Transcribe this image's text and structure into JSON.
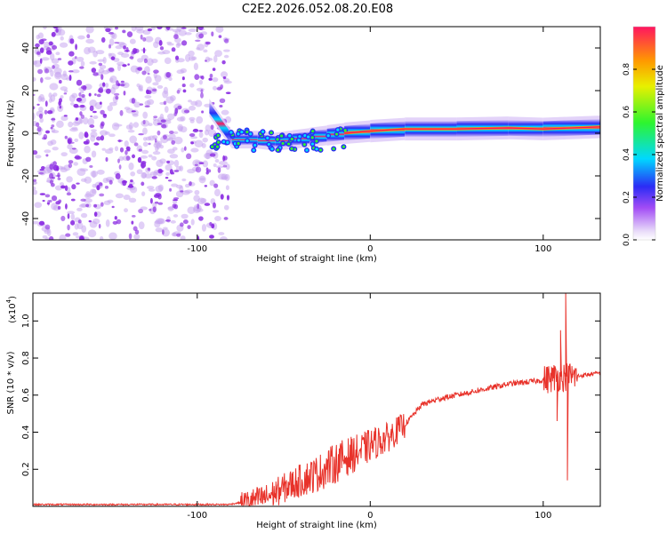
{
  "title": "C2E2.2026.052.08.20.E08",
  "colors": {
    "snr_line": "#e8322a",
    "noise_dot": "#8a2be2",
    "noise_halo": "#c9a8f0",
    "axis": "#000000"
  },
  "chart_data": [
    {
      "type": "heatmap",
      "name": "spectrogram",
      "xlabel": "Height of straight line (km)",
      "ylabel": "Frequency (Hz)",
      "xlim": [
        -195,
        133
      ],
      "ylim": [
        -50,
        50
      ],
      "xticks": [
        -100,
        0,
        100
      ],
      "yticks": [
        -40,
        -20,
        0,
        20,
        40
      ],
      "xtick_labels": [
        "-100",
        "0",
        "100"
      ],
      "ytick_labels": [
        "-40",
        "-20",
        "0",
        "20",
        "40"
      ],
      "noise_region_x": [
        -195,
        -82
      ],
      "ridge": [
        {
          "x": -93,
          "f": 12,
          "amp": 0.3
        },
        {
          "x": -80,
          "f": -3,
          "amp": 0.2
        },
        {
          "x": -65,
          "f": -3,
          "amp": 0.25
        },
        {
          "x": -55,
          "f": -4,
          "amp": 0.3
        },
        {
          "x": -45,
          "f": -3,
          "amp": 0.35
        },
        {
          "x": -35,
          "f": -2,
          "amp": 0.45
        },
        {
          "x": -25,
          "f": -1,
          "amp": 0.55
        },
        {
          "x": -15,
          "f": 0,
          "amp": 0.7
        },
        {
          "x": 0,
          "f": 1,
          "amp": 0.85
        },
        {
          "x": 20,
          "f": 2,
          "amp": 0.95
        },
        {
          "x": 50,
          "f": 2,
          "amp": 1.0
        },
        {
          "x": 80,
          "f": 2.5,
          "amp": 0.95
        },
        {
          "x": 100,
          "f": 2,
          "amp": 0.9
        },
        {
          "x": 133,
          "f": 3,
          "amp": 0.95
        }
      ],
      "colorbar": {
        "label": "Normalized spectral amplitude",
        "ticks": [
          0.0,
          0.2,
          0.4,
          0.6,
          0.8
        ],
        "tick_labels": [
          "0.0",
          "0.2",
          "0.4",
          "0.6",
          "0.8"
        ],
        "range": [
          0,
          1
        ]
      }
    },
    {
      "type": "line",
      "name": "snr",
      "xlabel": "Height of straight line (km)",
      "ylabel": "SNR (10 * v/v)",
      "yscale_label": "(x10",
      "yscale_exp": "4",
      "yscale_close": ")",
      "xlim": [
        -195,
        133
      ],
      "ylim": [
        0,
        1.15
      ],
      "xticks": [
        -100,
        0,
        100
      ],
      "yticks": [
        0.2,
        0.4,
        0.6,
        0.8,
        1.0
      ],
      "xtick_labels": [
        "-100",
        "0",
        "100"
      ],
      "ytick_labels": [
        "0.2",
        "0.4",
        "0.6",
        "0.8",
        "1.0"
      ],
      "trend": {
        "x": [
          -195,
          -82,
          -75,
          -60,
          -45,
          -30,
          -15,
          -5,
          0,
          10,
          20,
          30,
          40,
          60,
          80,
          100,
          108,
          113,
          118,
          133
        ],
        "y": [
          0.01,
          0.01,
          0.02,
          0.05,
          0.12,
          0.18,
          0.26,
          0.3,
          0.33,
          0.37,
          0.44,
          0.55,
          0.58,
          0.62,
          0.66,
          0.68,
          0.7,
          0.7,
          0.7,
          0.72
        ]
      },
      "spikes": [
        {
          "x": 113,
          "y": 1.15
        },
        {
          "x": 114,
          "y": 0.14
        },
        {
          "x": 110,
          "y": 0.95
        },
        {
          "x": 108,
          "y": 0.46
        }
      ]
    }
  ]
}
